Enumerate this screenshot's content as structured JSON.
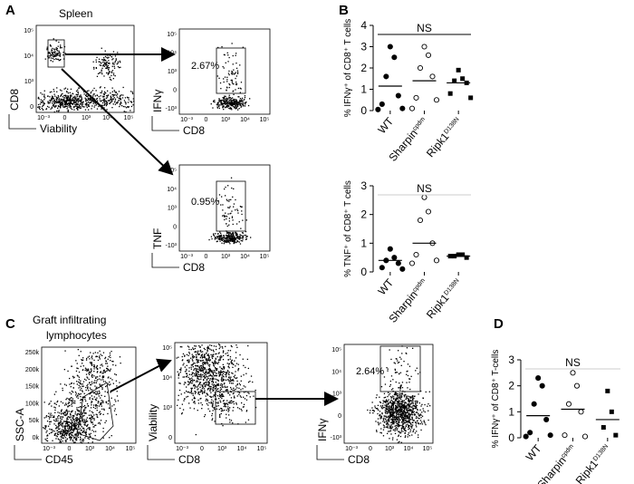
{
  "panels": [
    "A",
    "B",
    "C",
    "D"
  ],
  "flow_plots": [
    {
      "title": "Spleen",
      "xlabel": "Viability",
      "ylabel": "CD8",
      "xticks": [
        "10⁻³",
        "0",
        "10³",
        "10⁴",
        "10⁵"
      ],
      "yticks": [
        "10⁵",
        "10⁴",
        "10³",
        "0"
      ]
    },
    {
      "xlabel": "CD8",
      "ylabel": "IFNγ",
      "percent": "2.67%",
      "xticks": [
        "10⁻³",
        "0",
        "10³",
        "10⁴",
        "10⁵"
      ],
      "yticks": [
        "10⁵",
        "10⁴",
        "10³",
        "0",
        "-10³"
      ]
    },
    {
      "xlabel": "CD8",
      "ylabel": "TNF",
      "percent": "0.95%",
      "xticks": [
        "10⁻³",
        "0",
        "10³",
        "10⁴",
        "10⁵"
      ],
      "yticks": [
        "10⁵",
        "10⁴",
        "10³",
        "0",
        "-10³"
      ]
    },
    {
      "title": "Graft infiltrating",
      "title2": "lymphocytes",
      "xlabel": "CD45",
      "ylabel": "SSC-A",
      "xticks": [
        "10⁻³",
        "0",
        "10³",
        "10⁴",
        "10⁵"
      ],
      "yticks": [
        "250k",
        "200k",
        "150k",
        "100k",
        "50k",
        "0k"
      ]
    },
    {
      "xlabel": "CD8",
      "ylabel": "Viability",
      "xticks": [
        "10⁻³",
        "0",
        "10³",
        "10⁴",
        "10⁵"
      ],
      "yticks": [
        "10⁵",
        "10⁴",
        "10³",
        "0"
      ]
    },
    {
      "xlabel": "CD8",
      "ylabel": "IFNγ",
      "percent": "2.64%",
      "xticks": [
        "10⁻³",
        "0",
        "10³",
        "10⁴",
        "10⁵"
      ],
      "yticks": [
        "10⁵",
        "10⁴",
        "10³",
        "0",
        "-10³"
      ]
    }
  ],
  "chart_data": [
    {
      "type": "strip",
      "ylabel": "% IFNγ⁺ of CD8⁺ T cells",
      "categories": [
        "WT",
        "Sharpin",
        "Ripk1"
      ],
      "category_superscripts": [
        null,
        "cpdm",
        "D138N"
      ],
      "markers": [
        "filled-circle",
        "open-circle",
        "square"
      ],
      "values": [
        [
          3.0,
          2.5,
          1.6,
          0.7,
          0.3,
          0.1,
          0.05
        ],
        [
          3.0,
          2.6,
          2.0,
          1.6,
          0.6,
          0.5,
          0.1
        ],
        [
          1.9,
          1.5,
          1.4,
          1.3,
          0.8,
          0.6
        ]
      ],
      "means": [
        1.15,
        1.4,
        1.3
      ],
      "annotation": "NS",
      "annotation_color": "#000000",
      "ylim": [
        0,
        4
      ],
      "yticks": [
        0,
        1,
        2,
        3,
        4
      ]
    },
    {
      "type": "strip",
      "ylabel": "% TNF⁺ of CD8⁺ T cells",
      "categories": [
        "WT",
        "Sharpin",
        "Ripk1"
      ],
      "category_superscripts": [
        null,
        "cpdm",
        "D138N"
      ],
      "markers": [
        "filled-circle",
        "open-circle",
        "square"
      ],
      "values": [
        [
          0.8,
          0.5,
          0.4,
          0.3,
          0.15,
          0.1
        ],
        [
          2.6,
          2.1,
          1.8,
          1.0,
          0.6,
          0.4,
          0.3
        ],
        [
          0.6,
          0.6,
          0.55,
          0.5,
          0.55
        ]
      ],
      "means": [
        0.4,
        1.0,
        0.55
      ],
      "annotation": "NS",
      "annotation_color": "#cccccc",
      "ylim": [
        0,
        3
      ],
      "yticks": [
        0,
        1,
        2,
        3
      ]
    },
    {
      "type": "strip",
      "ylabel": "% IFNγ⁺ of CD8⁺ T-cells",
      "categories": [
        "WT",
        "Sharpin",
        "Ripk1"
      ],
      "category_superscripts": [
        null,
        "cpdm",
        "D138N"
      ],
      "markers": [
        "filled-circle",
        "open-circle",
        "square"
      ],
      "values": [
        [
          2.3,
          2.0,
          1.3,
          0.7,
          0.2,
          0.1,
          0.05
        ],
        [
          2.5,
          2.0,
          1.3,
          1.0,
          0.1,
          0.05
        ],
        [
          1.8,
          1.0,
          0.4,
          0.1
        ]
      ],
      "means": [
        0.85,
        1.1,
        0.7
      ],
      "annotation": "NS",
      "annotation_color": "#cccccc",
      "ylim": [
        0,
        3
      ],
      "yticks": [
        0,
        1,
        2,
        3
      ]
    }
  ]
}
